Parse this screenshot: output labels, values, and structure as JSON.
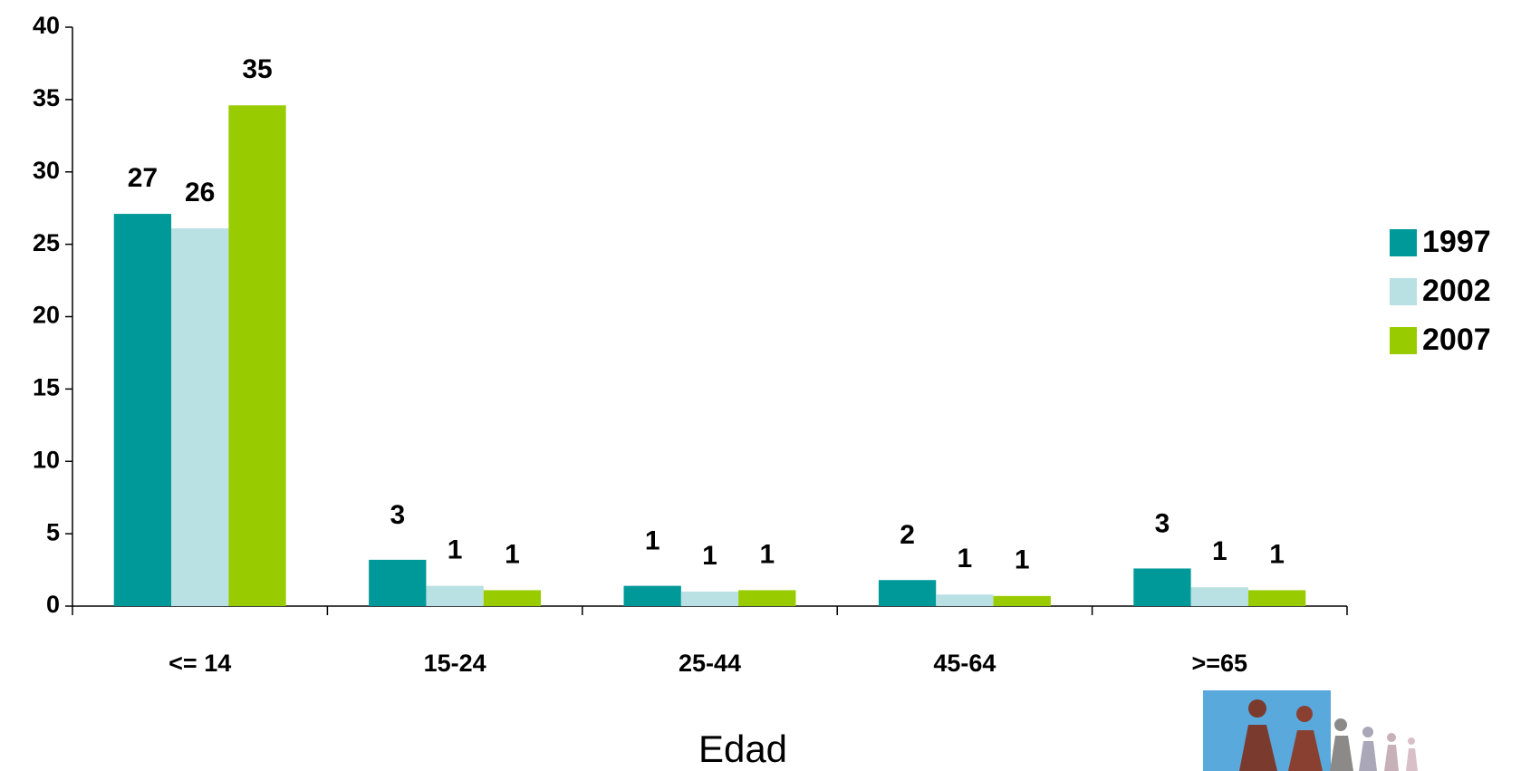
{
  "chart_data": {
    "type": "bar",
    "x_label": "Edad",
    "categories": [
      "<= 14",
      "15-24",
      "25-44",
      "45-64",
      ">=65"
    ],
    "series": [
      {
        "name": "1997",
        "color": "#009999",
        "values": [
          27.1,
          3.2,
          1.4,
          1.8,
          2.6
        ],
        "value_labels": [
          "27",
          "3",
          "1",
          "2",
          "3"
        ]
      },
      {
        "name": "2002",
        "color": "#b9e0e3",
        "values": [
          26.1,
          1.4,
          1.0,
          0.8,
          1.3
        ],
        "value_labels": [
          "26",
          "1",
          "1",
          "1",
          "1"
        ]
      },
      {
        "name": "2007",
        "color": "#99cc00",
        "values": [
          34.6,
          1.1,
          1.1,
          0.7,
          1.1
        ],
        "value_labels": [
          "35",
          "1",
          "1",
          "1",
          "1"
        ]
      }
    ],
    "ylim": [
      0,
      40
    ],
    "yticks": [
      0,
      5,
      10,
      15,
      20,
      25,
      30,
      35,
      40
    ],
    "grid": false,
    "legend": "right"
  }
}
